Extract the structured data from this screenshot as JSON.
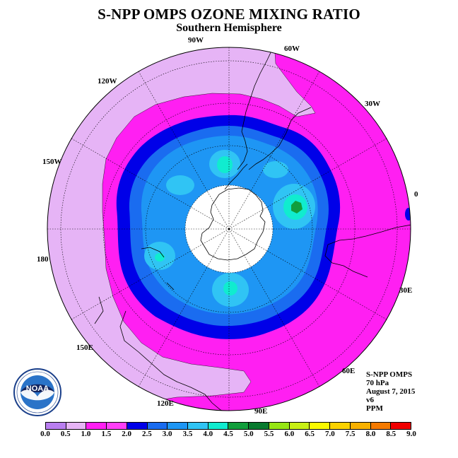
{
  "title": "S-NPP OMPS OZONE MIXING RATIO",
  "subtitle": "Southern Hemisphere",
  "logo": {
    "text": "NOAA"
  },
  "info": {
    "instrument": "S-NPP OMPS",
    "level": "70 hPa",
    "date": "August 7, 2015",
    "version": "v6",
    "units": "PPM"
  },
  "longitude_labels": [
    "0",
    "30E",
    "60E",
    "90E",
    "120E",
    "150E",
    "180",
    "150W",
    "120W",
    "90W",
    "60W",
    "30W"
  ],
  "colorbar": {
    "ticks": [
      "0.0",
      "0.5",
      "1.0",
      "1.5",
      "2.0",
      "2.5",
      "3.0",
      "3.5",
      "4.0",
      "4.5",
      "5.0",
      "5.5",
      "6.0",
      "6.5",
      "7.0",
      "7.5",
      "8.0",
      "8.5",
      "9.0"
    ],
    "colors": [
      "#b97ef0",
      "#e6b4f6",
      "#ff1ff2",
      "#fe3ff8",
      "#0000e8",
      "#1a6cf0",
      "#1e96f4",
      "#30c4f4",
      "#10eccf",
      "#119e3c",
      "#087a2e",
      "#96e614",
      "#c8f014",
      "#fafa00",
      "#fad200",
      "#f8b100",
      "#f57a00",
      "#f00000",
      "#8c5532"
    ]
  }
}
